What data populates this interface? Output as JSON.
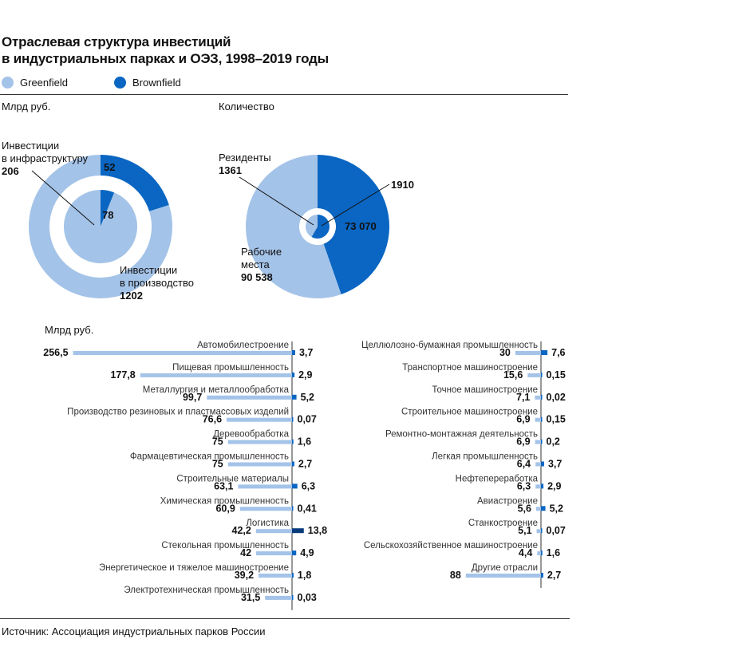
{
  "title_line1": "Отраслевая структура инвестиций",
  "title_line2": "в индустриальных парках и ОЭЗ, 1998–2019 годы",
  "legend": [
    {
      "label": "Greenfield",
      "color": "#a4c3e8"
    },
    {
      "label": "Brownfield",
      "color": "#0a66c2"
    }
  ],
  "colors": {
    "greenfield": "#a4c3e8",
    "brownfield": "#0a66c2",
    "brownfield_dark": "#083a7a"
  },
  "units_left": "Млрд руб.",
  "units_right": "Количество",
  "units_bars": "Млрд руб.",
  "source": "Источник: Ассоциация индустриальных парков России",
  "chart_data": [
    {
      "type": "pie",
      "units": "Млрд руб.",
      "rings": [
        {
          "name": "Инвестиции в инфраструктуру",
          "label_line1": "Инвестиции",
          "label_line2": "в инфраструктуру",
          "greenfield": 206,
          "brownfield": 52,
          "greenfield_label": "206",
          "brownfield_label": "52"
        },
        {
          "name": "Инвестиции в производство",
          "label_line1": "Инвестиции",
          "label_line2": "в производство",
          "greenfield": 1202,
          "brownfield": 78,
          "greenfield_label": "1202",
          "brownfield_label": "78"
        }
      ]
    },
    {
      "type": "pie",
      "units": "Количество",
      "rings": [
        {
          "name": "Резиденты",
          "label_line1": "Резиденты",
          "greenfield": 1361,
          "brownfield": 1910,
          "greenfield_label": "1361",
          "brownfield_label": "1910"
        },
        {
          "name": "Рабочие места",
          "label_line1": "Рабочие",
          "label_line2": "места",
          "greenfield": 90538,
          "brownfield": 73070,
          "greenfield_label": "90 538",
          "brownfield_label": "73 070"
        }
      ]
    },
    {
      "type": "bar",
      "orientation": "horizontal",
      "units": "Млрд руб.",
      "columns": [
        [
          {
            "category": "Автомобилестроение",
            "greenfield": 256.5,
            "brownfield": 3.7,
            "g_label": "256,5",
            "b_label": "3,7"
          },
          {
            "category": "Пищевая промышленность",
            "greenfield": 177.8,
            "brownfield": 2.9,
            "g_label": "177,8",
            "b_label": "2,9"
          },
          {
            "category": "Металлургия и металлообработка",
            "greenfield": 99.7,
            "brownfield": 5.2,
            "g_label": "99,7",
            "b_label": "5,2"
          },
          {
            "category": "Производство резиновых и пластмассовых изделий",
            "greenfield": 76.6,
            "brownfield": 0.07,
            "g_label": "76,6",
            "b_label": "0,07"
          },
          {
            "category": "Деревообработка",
            "greenfield": 75,
            "brownfield": 1.6,
            "g_label": "75",
            "b_label": "1,6"
          },
          {
            "category": "Фармацевтическая промышленность",
            "greenfield": 75,
            "brownfield": 2.7,
            "g_label": "75",
            "b_label": "2,7"
          },
          {
            "category": "Строительные материалы",
            "greenfield": 63.1,
            "brownfield": 6.3,
            "g_label": "63,1",
            "b_label": "6,3"
          },
          {
            "category": "Химическая промышленность",
            "greenfield": 60.9,
            "brownfield": 0.41,
            "g_label": "60,9",
            "b_label": "0,41"
          },
          {
            "category": "Логистика",
            "greenfield": 42.2,
            "brownfield": 13.8,
            "g_label": "42,2",
            "b_label": "13,8"
          },
          {
            "category": "Стекольная промышленность",
            "greenfield": 42,
            "brownfield": 4.9,
            "g_label": "42",
            "b_label": "4,9"
          },
          {
            "category": "Энергетическое и тяжелое машиностроение",
            "greenfield": 39.2,
            "brownfield": 1.8,
            "g_label": "39,2",
            "b_label": "1,8"
          },
          {
            "category": "Электротехническая промышленность",
            "greenfield": 31.5,
            "brownfield": 0.03,
            "g_label": "31,5",
            "b_label": "0,03"
          }
        ],
        [
          {
            "category": "Целлюлозно-бумажная промышленность",
            "greenfield": 30,
            "brownfield": 7.6,
            "g_label": "30",
            "b_label": "7,6"
          },
          {
            "category": "Транспортное машиностроение",
            "greenfield": 15.6,
            "brownfield": 0.15,
            "g_label": "15,6",
            "b_label": "0,15"
          },
          {
            "category": "Точное машиностроение",
            "greenfield": 7.1,
            "brownfield": 0.02,
            "g_label": "7,1",
            "b_label": "0,02"
          },
          {
            "category": "Строительное машиностроение",
            "greenfield": 6.9,
            "brownfield": 0.15,
            "g_label": "6,9",
            "b_label": "0,15"
          },
          {
            "category": "Ремонтно-монтажная деятельность",
            "greenfield": 6.9,
            "brownfield": 0.2,
            "g_label": "6,9",
            "b_label": "0,2"
          },
          {
            "category": "Легкая промышленность",
            "greenfield": 6.4,
            "brownfield": 3.7,
            "g_label": "6,4",
            "b_label": "3,7"
          },
          {
            "category": "Нефтепереработка",
            "greenfield": 6.3,
            "brownfield": 2.9,
            "g_label": "6,3",
            "b_label": "2,9"
          },
          {
            "category": "Авиастроение",
            "greenfield": 5.6,
            "brownfield": 5.2,
            "g_label": "5,6",
            "b_label": "5,2"
          },
          {
            "category": "Станкостроение",
            "greenfield": 5.1,
            "brownfield": 0.07,
            "g_label": "5,1",
            "b_label": "0,07"
          },
          {
            "category": "Сельскохозяйственное машиностроение",
            "greenfield": 4.4,
            "brownfield": 1.6,
            "g_label": "4,4",
            "b_label": "1,6"
          },
          {
            "category": "Другие отрасли",
            "greenfield": 88,
            "brownfield": 2.7,
            "g_label": "88",
            "b_label": "2,7"
          }
        ]
      ]
    }
  ]
}
